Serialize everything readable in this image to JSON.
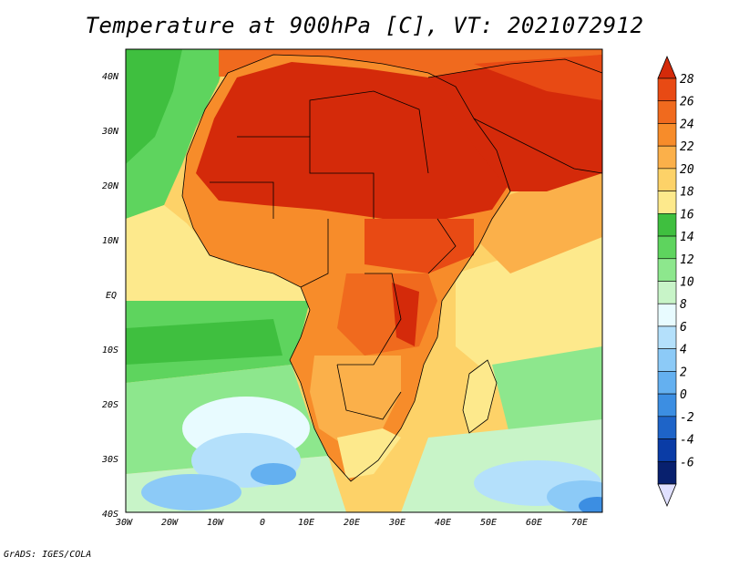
{
  "title": "Temperature at 900hPa [C], VT: 2021072912",
  "credit": "GrADS: IGES/COLA",
  "map": {
    "lon_range": [
      -30,
      75
    ],
    "lat_range": [
      -40,
      45
    ],
    "lon_ticks": [
      "30W",
      "20W",
      "10W",
      "0",
      "10E",
      "20E",
      "30E",
      "40E",
      "50E",
      "60E",
      "70E"
    ],
    "lat_ticks": [
      "40N",
      "30N",
      "20N",
      "10N",
      "EQ",
      "10S",
      "20S",
      "30S",
      "40S"
    ]
  },
  "colorbar": {
    "labels": [
      "28",
      "26",
      "24",
      "22",
      "20",
      "18",
      "16",
      "14",
      "12",
      "10",
      "8",
      "6",
      "4",
      "2",
      "0",
      "-2",
      "-4",
      "-6"
    ],
    "colors": [
      "#d42a0a",
      "#e84a14",
      "#f06a1e",
      "#f78c2a",
      "#fbb04a",
      "#fdd268",
      "#fde98c",
      "#3fbf3f",
      "#5ed45e",
      "#8de78d",
      "#c8f4c8",
      "#e8fbff",
      "#b4e0fb",
      "#8ccaf7",
      "#64b0f0",
      "#3c8ee2",
      "#1e64c8",
      "#0a3ca6",
      "#08206e"
    ]
  }
}
